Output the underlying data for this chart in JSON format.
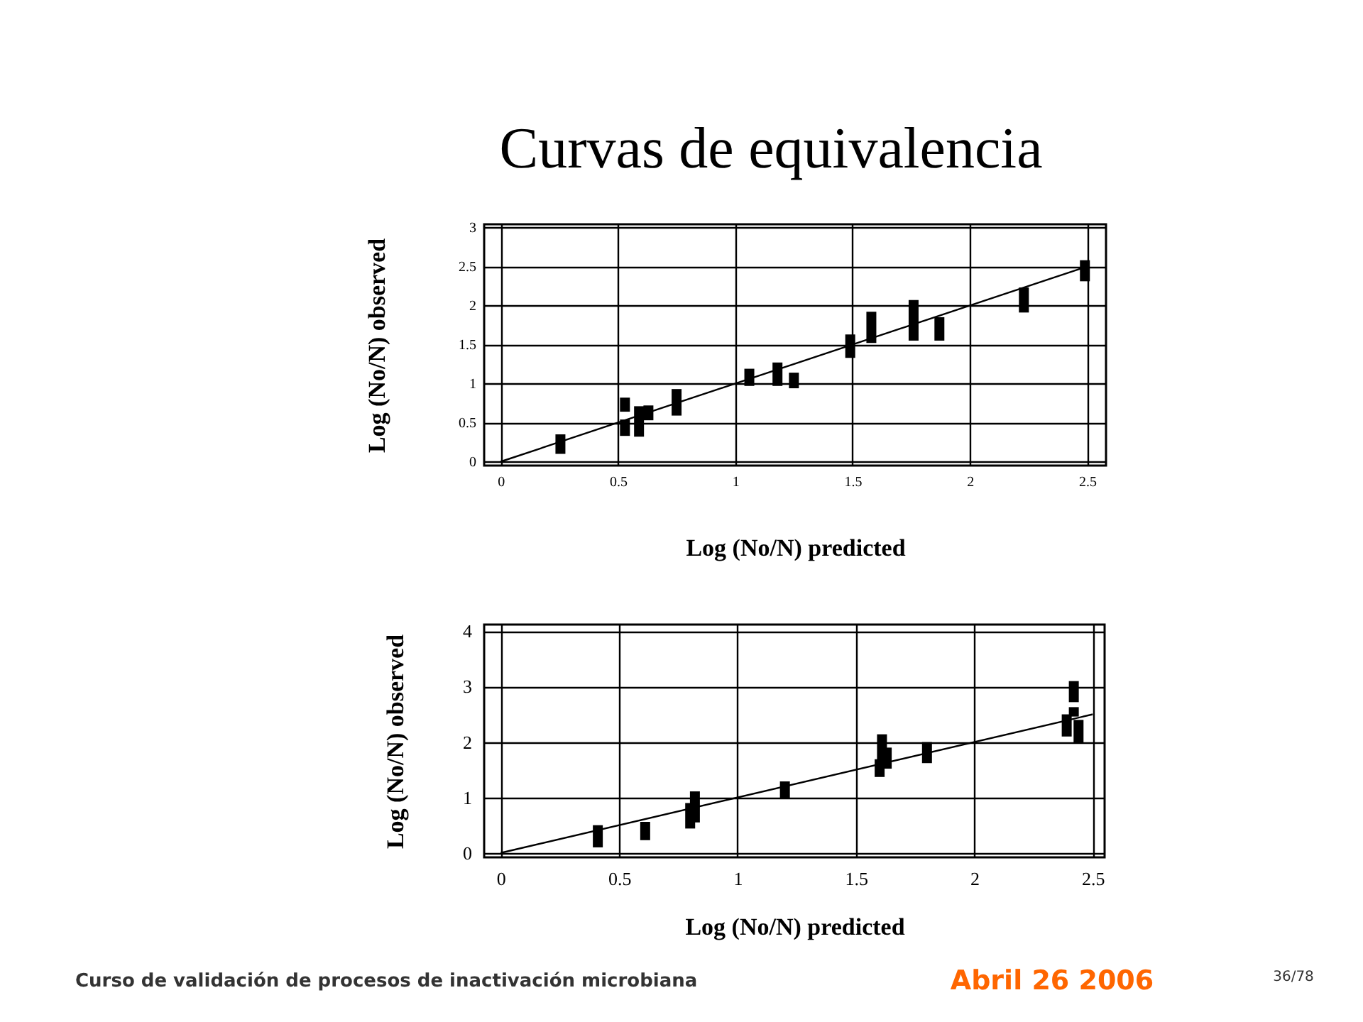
{
  "chart_data": [
    {
      "type": "bar",
      "title": "Curvas de equivalencia",
      "xlabel": "Log (No/N) predicted",
      "ylabel": "Log (No/N) observed",
      "xlim": [
        -0.07,
        2.58
      ],
      "ylim": [
        -0.05,
        3.04
      ],
      "xticks": [
        0,
        0.5,
        1,
        1.5,
        2,
        2.5
      ],
      "yticks": [
        0,
        0.5,
        1,
        1.5,
        2,
        2.5,
        3
      ],
      "grid": true,
      "series": [
        {
          "color": "#000000",
          "x": [
            0.255,
            0.53,
            0.59,
            0.63,
            0.75,
            1.06,
            1.18,
            1.25,
            1.49,
            1.58,
            1.76,
            1.87,
            2.23,
            2.49
          ],
          "base": [
            0.1,
            0.33,
            0.32,
            0.53,
            0.59,
            0.97,
            0.97,
            0.94,
            1.33,
            1.52,
            1.55,
            1.55,
            1.91,
            2.31
          ],
          "values": [
            0.25,
            0.21,
            0.39,
            0.19,
            0.34,
            0.22,
            0.3,
            0.2,
            0.3,
            0.4,
            0.52,
            0.3,
            0.32,
            0.27
          ]
        },
        {
          "color": "#000000",
          "x": [
            0.53
          ],
          "base": [
            0.64
          ],
          "values": [
            0.18
          ]
        },
        {
          "type": "line",
          "color": "#000000",
          "x": [
            0,
            2.5
          ],
          "values": [
            0,
            2.5
          ]
        }
      ]
    },
    {
      "type": "bar",
      "xlabel": "Log (No/N) predicted",
      "ylabel": "Log (No/N) observed",
      "xlim": [
        -0.07,
        2.55
      ],
      "ylim": [
        -0.08,
        4.12
      ],
      "xticks": [
        0,
        0.5,
        1,
        1.5,
        2,
        2.5
      ],
      "yticks": [
        0,
        1,
        2,
        3,
        4
      ],
      "grid": true,
      "series": [
        {
          "color": "#000000",
          "x": [
            0.41,
            0.61,
            0.8,
            0.82,
            1.2,
            1.6,
            1.61,
            1.63,
            1.8,
            2.39,
            2.42,
            2.44
          ],
          "base": [
            0.1,
            0.23,
            0.44,
            0.55,
            0.97,
            1.37,
            1.61,
            1.52,
            1.62,
            2.1,
            2.46,
            1.97
          ],
          "values": [
            0.4,
            0.33,
            0.46,
            0.56,
            0.32,
            0.32,
            0.53,
            0.38,
            0.38,
            0.4,
            0.17,
            0.43
          ]
        },
        {
          "color": "#000000",
          "x": [
            2.42
          ],
          "base": [
            2.72
          ],
          "values": [
            0.38
          ]
        },
        {
          "type": "line",
          "color": "#000000",
          "x": [
            0,
            2.5
          ],
          "values": [
            0,
            2.5
          ]
        }
      ],
      "annotations": [
        "Curso de validación de procesos de inactivación microbiana",
        "Abril 26 2006",
        "36/78"
      ]
    }
  ]
}
